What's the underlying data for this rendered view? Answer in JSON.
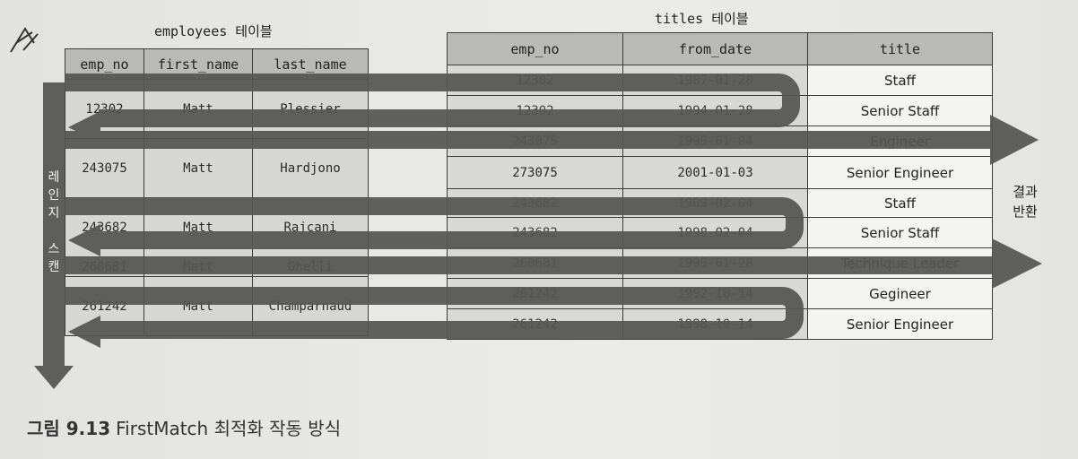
{
  "employees_table": {
    "title": "employees 테이블",
    "columns": [
      "emp_no",
      "first_name",
      "last_name"
    ],
    "rows": [
      [
        "12302",
        "Matt",
        "Plessier"
      ],
      [
        "243075",
        "Matt",
        "Hardjono"
      ],
      [
        "243682",
        "Matt",
        "Rajcani"
      ],
      [
        "260681",
        "Matt",
        "Ghelli"
      ],
      [
        "261242",
        "Matt",
        "Champarnaud"
      ]
    ]
  },
  "titles_table": {
    "title": "titles 테이블",
    "columns": [
      "emp_no",
      "from_date",
      "title"
    ],
    "rows": [
      [
        "12302",
        "1987-01-28",
        "Staff"
      ],
      [
        "12302",
        "1994-01-28",
        "Senior Staff"
      ],
      [
        "243075",
        "1995-01-04",
        "Engineer"
      ],
      [
        "273075",
        "2001-01-03",
        "Senior Engineer"
      ],
      [
        "243682",
        "1989-02-04",
        "Staff"
      ],
      [
        "243682",
        "1998-02-04",
        "Senior Staff"
      ],
      [
        "260681",
        "1995-01-28",
        "Technique Leader"
      ],
      [
        "261242",
        "1992-10-14",
        "Gegineer"
      ],
      [
        "261242",
        "1998-10-14",
        "Senior Engineer"
      ]
    ]
  },
  "labels": {
    "scan": [
      "레",
      "인",
      "지",
      "",
      "스",
      "캔"
    ],
    "result": [
      "결과",
      "반환"
    ]
  },
  "caption": {
    "label": "그림 9.13",
    "text": "FirstMatch 최적화 작동 방식"
  },
  "colors": {
    "arrow": "#555553",
    "header_bg": "#b9b9b6",
    "cell_bg": "#d8d8d5",
    "title_cell_bg": "#f4f4f2"
  }
}
